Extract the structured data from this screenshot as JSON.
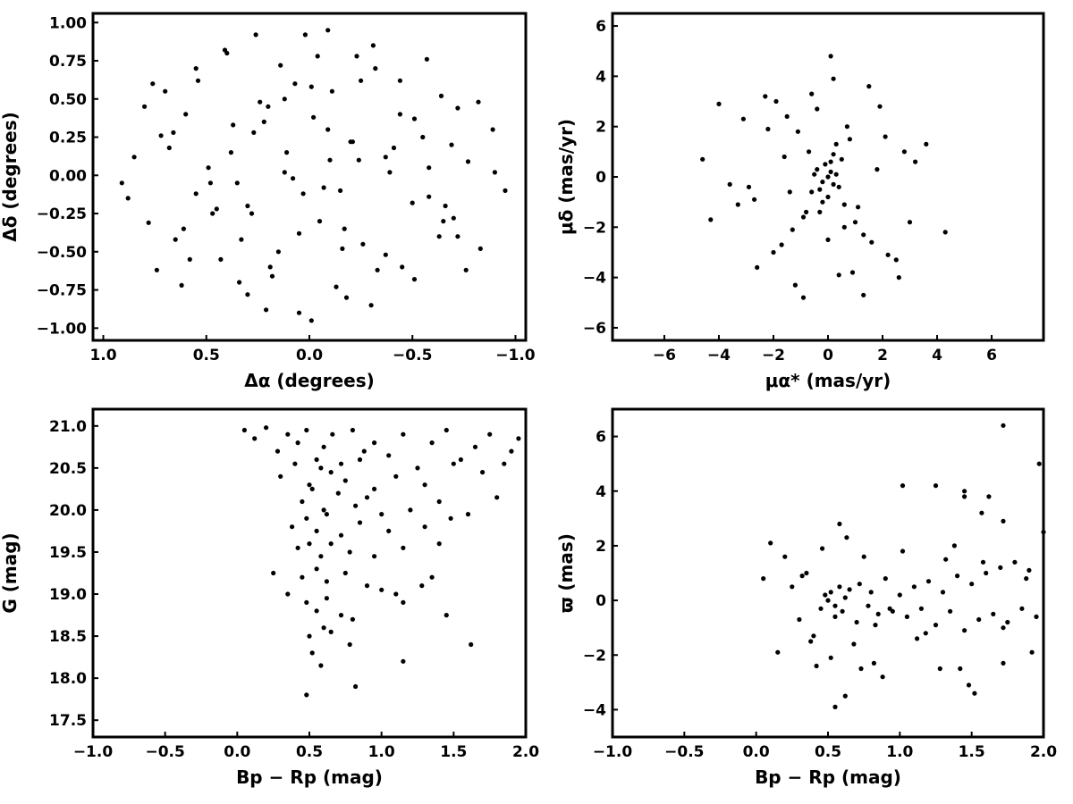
{
  "chart_data": [
    {
      "type": "scatter",
      "xlabel": "Δα (degrees)",
      "ylabel": "Δδ (degrees)",
      "xlim": [
        1.05,
        -1.05
      ],
      "ylim": [
        -1.08,
        1.06
      ],
      "xticks": [
        1.0,
        0.5,
        0.0,
        -0.5,
        -1.0
      ],
      "yticks": [
        1.0,
        0.75,
        0.5,
        0.25,
        0.0,
        -0.25,
        -0.5,
        -0.75,
        -1.0
      ],
      "xtick_labels": [
        "1.0",
        "0.5",
        "0.0",
        "−0.5",
        "−1.0"
      ],
      "ytick_labels": [
        "1.00",
        "0.75",
        "0.50",
        "0.25",
        "0.00",
        "−0.25",
        "−0.50",
        "−0.75",
        "−1.00"
      ],
      "marker_color": "#000000",
      "x": [
        0.91,
        0.85,
        0.78,
        0.72,
        0.65,
        0.6,
        0.55,
        0.49,
        0.43,
        0.37,
        0.3,
        0.24,
        0.18,
        0.11,
        0.05,
        -0.01,
        -0.07,
        -0.13,
        -0.2,
        -0.26,
        -0.32,
        -0.39,
        -0.45,
        -0.51,
        -0.58,
        -0.64,
        -0.7,
        -0.77,
        -0.83,
        -0.89,
        -0.95,
        0.88,
        0.8,
        0.74,
        0.68,
        0.61,
        0.54,
        0.47,
        0.4,
        0.34,
        0.27,
        0.21,
        0.14,
        0.08,
        0.02,
        -0.05,
        -0.11,
        -0.18,
        -0.24,
        -0.31,
        -0.37,
        -0.44,
        -0.5,
        -0.57,
        -0.63,
        -0.69,
        -0.76,
        -0.82,
        -0.9,
        0.7,
        0.62,
        0.55,
        0.48,
        0.41,
        0.33,
        0.26,
        0.19,
        0.12,
        0.05,
        -0.02,
        -0.09,
        -0.16,
        -0.23,
        -0.3,
        -0.37,
        -0.44,
        -0.51,
        -0.58,
        -0.65,
        -0.72,
        0.45,
        0.38,
        0.3,
        0.22,
        0.15,
        0.07,
        -0.01,
        -0.09,
        -0.17,
        -0.25,
        -0.33,
        -0.41,
        0.35,
        0.12,
        -0.1,
        0.28,
        -0.21,
        0.58,
        -0.55,
        0.76,
        -0.72,
        0.03,
        -0.04,
        0.66,
        -0.66,
        0.2,
        -0.15
      ],
      "y": [
        -0.05,
        0.12,
        -0.31,
        0.26,
        -0.42,
        0.4,
        -0.12,
        0.05,
        -0.55,
        0.33,
        -0.2,
        0.48,
        -0.66,
        0.15,
        -0.38,
        0.58,
        -0.08,
        -0.73,
        0.22,
        -0.45,
        0.7,
        0.02,
        -0.6,
        0.37,
        -0.14,
        0.52,
        -0.28,
        0.09,
        -0.48,
        0.3,
        -0.1,
        -0.15,
        0.45,
        -0.62,
        0.18,
        -0.35,
        0.62,
        -0.25,
        0.8,
        -0.7,
        0.28,
        -0.88,
        0.72,
        -0.02,
        0.92,
        -0.3,
        0.55,
        -0.8,
        0.1,
        0.85,
        -0.52,
        0.4,
        -0.18,
        0.76,
        -0.4,
        0.2,
        -0.62,
        0.48,
        0.02,
        0.55,
        -0.72,
        0.7,
        -0.05,
        0.82,
        -0.42,
        0.92,
        -0.6,
        0.5,
        -0.9,
        0.38,
        0.95,
        -0.48,
        0.78,
        -0.85,
        0.12,
        0.62,
        -0.68,
        0.05,
        -0.3,
        0.44,
        -0.22,
        0.15,
        -0.78,
        0.35,
        -0.5,
        0.6,
        -0.95,
        0.3,
        -0.35,
        0.62,
        -0.62,
        0.18,
        -0.05,
        0.02,
        0.1,
        -0.25,
        0.22,
        -0.55,
        0.25,
        0.6,
        -0.4,
        -0.12,
        0.78,
        0.28,
        -0.2,
        0.45,
        -0.1
      ],
      "title": ""
    },
    {
      "type": "scatter",
      "xlabel": "μα* (mas/yr)",
      "ylabel": "μδ (mas/yr)",
      "xlim": [
        -7.9,
        7.9
      ],
      "ylim": [
        -6.5,
        6.5
      ],
      "xticks": [
        -6,
        -4,
        -2,
        0,
        2,
        4,
        6
      ],
      "yticks": [
        -6,
        -4,
        -2,
        0,
        2,
        4,
        6
      ],
      "xtick_labels": [
        "−6",
        "−4",
        "−2",
        "0",
        "2",
        "4",
        "6"
      ],
      "ytick_labels": [
        "−6",
        "−4",
        "−2",
        "0",
        "2",
        "4",
        "6"
      ],
      "marker_color": "#000000",
      "x": [
        0.0,
        0.1,
        -0.2,
        0.3,
        -0.4,
        0.2,
        -0.1,
        0.4,
        -0.3,
        0.1,
        -0.5,
        0.5,
        -0.6,
        0.0,
        0.2,
        -0.2,
        0.6,
        -0.7,
        0.3,
        -0.3,
        0.8,
        -0.9,
        1.0,
        -1.1,
        0.7,
        -1.3,
        1.3,
        -1.5,
        1.6,
        -1.7,
        1.9,
        -2.0,
        2.2,
        -2.3,
        2.5,
        -2.6,
        2.8,
        -2.9,
        3.2,
        -3.3,
        3.6,
        -3.6,
        -4.0,
        -4.3,
        -4.6,
        4.3,
        0.1,
        0.2,
        -0.9,
        -1.9,
        1.5,
        -1.2,
        0.9,
        -0.4,
        0.6,
        2.6,
        -2.2,
        1.1,
        -1.6,
        0.4,
        -0.8,
        1.8,
        -2.7,
        3.0,
        -3.1,
        1.3,
        -0.6,
        0.0,
        2.1,
        -1.4
      ],
      "y": [
        0.0,
        0.2,
        -0.2,
        0.1,
        0.3,
        -0.3,
        0.5,
        -0.4,
        -0.5,
        0.6,
        0.1,
        0.7,
        -0.6,
        -0.8,
        0.9,
        -1.0,
        -1.1,
        1.0,
        1.3,
        -1.4,
        1.5,
        -1.6,
        -1.8,
        1.8,
        2.0,
        -2.1,
        -2.3,
        2.4,
        -2.6,
        -2.7,
        2.8,
        -3.0,
        -3.1,
        3.2,
        -3.3,
        -3.6,
        1.0,
        -0.4,
        0.6,
        -1.1,
        1.3,
        -0.3,
        2.9,
        -1.7,
        0.7,
        -2.2,
        4.8,
        3.9,
        -4.8,
        3.0,
        3.6,
        -4.3,
        -3.8,
        2.7,
        -2.0,
        -4.0,
        1.9,
        -1.2,
        0.8,
        -3.9,
        -1.4,
        0.3,
        -0.9,
        -1.8,
        2.3,
        -4.7,
        3.3,
        -2.5,
        1.6,
        -0.6
      ],
      "title": ""
    },
    {
      "type": "scatter",
      "xlabel": "Bp − Rp (mag)",
      "ylabel": "G (mag)",
      "xlim": [
        -1.0,
        2.0
      ],
      "ylim": [
        17.3,
        21.2
      ],
      "xticks": [
        -1.0,
        -0.5,
        0.0,
        0.5,
        1.0,
        1.5,
        2.0
      ],
      "yticks": [
        17.5,
        18.0,
        18.5,
        19.0,
        19.5,
        20.0,
        20.5,
        21.0
      ],
      "xtick_labels": [
        "−1.0",
        "−0.5",
        "0.0",
        "0.5",
        "1.0",
        "1.5",
        "2.0"
      ],
      "ytick_labels": [
        "17.5",
        "18.0",
        "18.5",
        "19.0",
        "19.5",
        "20.0",
        "20.5",
        "21.0"
      ],
      "marker_color": "#000000",
      "x": [
        0.05,
        0.12,
        0.2,
        0.28,
        0.35,
        0.42,
        0.48,
        0.55,
        0.6,
        0.66,
        0.72,
        0.8,
        0.88,
        0.95,
        1.05,
        1.15,
        1.25,
        1.35,
        1.45,
        1.55,
        1.65,
        1.75,
        1.85,
        1.95,
        0.3,
        0.4,
        0.5,
        0.58,
        0.65,
        0.75,
        0.85,
        0.95,
        1.1,
        1.3,
        1.5,
        1.7,
        0.45,
        0.52,
        0.6,
        0.7,
        0.82,
        0.9,
        1.0,
        1.2,
        1.4,
        1.6,
        0.38,
        0.48,
        0.55,
        0.62,
        0.72,
        0.85,
        1.05,
        1.3,
        1.48,
        0.42,
        0.5,
        0.58,
        0.65,
        0.78,
        0.95,
        1.15,
        1.4,
        0.45,
        0.55,
        0.62,
        0.75,
        0.9,
        1.1,
        1.35,
        0.48,
        0.55,
        0.62,
        0.8,
        1.0,
        1.15,
        1.28,
        0.5,
        0.6,
        0.78,
        1.15,
        0.52,
        0.58,
        0.48,
        0.35,
        0.25,
        0.65,
        0.72,
        1.45,
        1.62,
        1.8,
        1.9,
        0.82
      ],
      "y": [
        20.95,
        20.85,
        20.98,
        20.7,
        20.9,
        20.8,
        20.95,
        20.6,
        20.75,
        20.9,
        20.55,
        20.95,
        20.7,
        20.8,
        20.65,
        20.9,
        20.5,
        20.8,
        20.95,
        20.6,
        20.75,
        20.9,
        20.55,
        20.85,
        20.4,
        20.55,
        20.3,
        20.5,
        20.45,
        20.35,
        20.6,
        20.25,
        20.4,
        20.3,
        20.55,
        20.45,
        20.1,
        20.25,
        20.0,
        20.2,
        20.05,
        20.15,
        19.95,
        20.0,
        20.1,
        19.95,
        19.8,
        19.9,
        19.75,
        19.95,
        19.7,
        19.85,
        19.75,
        19.8,
        19.9,
        19.55,
        19.6,
        19.45,
        19.6,
        19.5,
        19.45,
        19.55,
        19.6,
        19.2,
        19.3,
        19.15,
        19.25,
        19.1,
        19.0,
        19.2,
        18.9,
        18.8,
        18.95,
        18.7,
        19.05,
        18.9,
        19.1,
        18.5,
        18.6,
        18.4,
        18.2,
        18.3,
        18.15,
        17.8,
        19.0,
        19.25,
        18.55,
        18.75,
        18.75,
        18.4,
        20.15,
        20.7,
        17.9
      ],
      "title": ""
    },
    {
      "type": "scatter",
      "xlabel": "Bp − Rp (mag)",
      "ylabel": "ϖ (mas)",
      "xlim": [
        -1.0,
        2.0
      ],
      "ylim": [
        -5.0,
        7.0
      ],
      "xticks": [
        -1.0,
        -0.5,
        0.0,
        0.5,
        1.0,
        1.5,
        2.0
      ],
      "yticks": [
        -4,
        -2,
        0,
        2,
        4,
        6
      ],
      "xtick_labels": [
        "−1.0",
        "−0.5",
        "0.0",
        "0.5",
        "1.0",
        "1.5",
        "2.0"
      ],
      "ytick_labels": [
        "−4",
        "−2",
        "0",
        "2",
        "4",
        "6"
      ],
      "marker_color": "#000000",
      "x": [
        0.5,
        0.52,
        0.55,
        0.58,
        0.6,
        0.62,
        0.55,
        0.48,
        0.45,
        0.65,
        0.7,
        0.72,
        0.78,
        0.8,
        0.85,
        0.9,
        0.95,
        1.0,
        1.05,
        1.1,
        1.15,
        1.2,
        1.25,
        1.3,
        1.35,
        1.4,
        1.45,
        1.5,
        1.55,
        1.6,
        1.65,
        1.7,
        1.75,
        1.8,
        1.85,
        1.9,
        1.95,
        2.0,
        0.25,
        0.3,
        0.35,
        0.4,
        0.2,
        0.15,
        0.1,
        0.05,
        0.42,
        0.58,
        0.68,
        0.75,
        0.88,
        1.02,
        1.18,
        1.28,
        1.38,
        1.48,
        1.58,
        1.72,
        1.88,
        0.32,
        0.38,
        0.46,
        0.52,
        0.63,
        0.73,
        0.83,
        0.93,
        1.12,
        1.32,
        1.42,
        1.52,
        1.62,
        1.72,
        1.92,
        0.55,
        0.62,
        0.82,
        1.02,
        1.25,
        1.45,
        1.45,
        1.57,
        1.72,
        1.72,
        1.97
      ],
      "y": [
        0.0,
        0.3,
        -0.2,
        0.5,
        -0.4,
        0.1,
        -0.6,
        0.2,
        -0.3,
        0.4,
        -0.8,
        0.6,
        -0.2,
        0.3,
        -0.5,
        0.8,
        -0.4,
        0.2,
        -0.6,
        0.5,
        -0.3,
        0.7,
        -0.9,
        0.3,
        -0.4,
        0.9,
        -1.1,
        0.6,
        -0.7,
        1.0,
        -0.5,
        1.2,
        -0.8,
        1.4,
        -0.3,
        1.1,
        -0.6,
        2.5,
        0.5,
        -0.7,
        1.0,
        -1.3,
        1.6,
        -1.9,
        2.1,
        0.8,
        -2.4,
        2.8,
        -1.6,
        1.6,
        -2.8,
        1.8,
        -1.2,
        -2.5,
        2.0,
        -3.1,
        1.4,
        -1.0,
        0.8,
        0.9,
        -1.5,
        1.9,
        -2.1,
        2.3,
        -2.5,
        -0.9,
        -0.3,
        -1.4,
        1.5,
        -2.5,
        -3.4,
        3.8,
        -2.3,
        -1.9,
        -3.9,
        -3.5,
        -2.3,
        4.2,
        4.2,
        4.0,
        3.8,
        3.2,
        2.9,
        6.4,
        5.0
      ],
      "title": ""
    }
  ]
}
